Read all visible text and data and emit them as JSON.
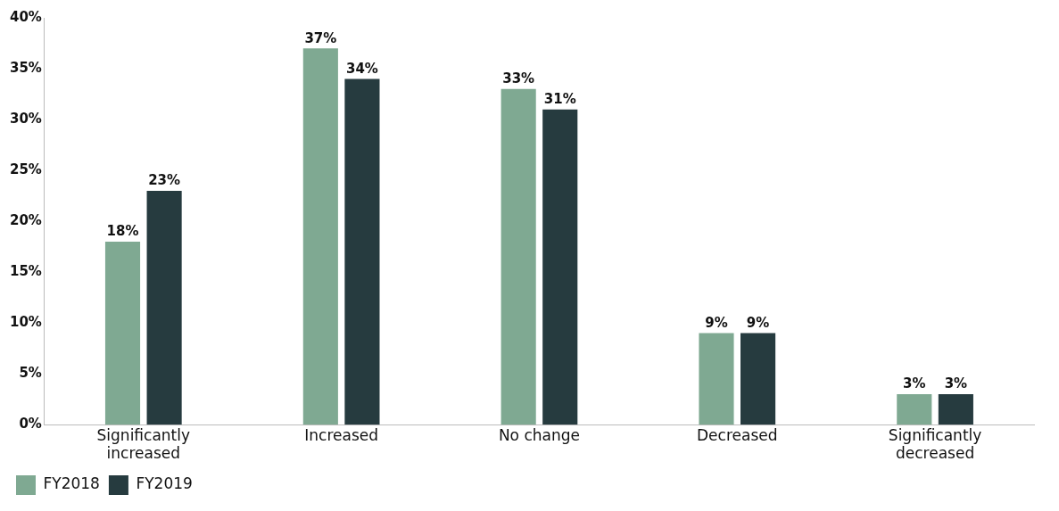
{
  "chart_data": {
    "type": "bar",
    "categories": [
      "Significantly increased",
      "Increased",
      "No change",
      "Decreased",
      "Significantly decreased"
    ],
    "series": [
      {
        "name": "FY2018",
        "color": "#7fa992",
        "values": [
          18,
          37,
          33,
          9,
          3
        ],
        "value_labels": [
          "18%",
          "37%",
          "33%",
          "9%",
          "3%"
        ]
      },
      {
        "name": "FY2019",
        "color": "#263b3f",
        "values": [
          23,
          34,
          31,
          9,
          3
        ],
        "value_labels": [
          "23%",
          "34%",
          "31%",
          "9%",
          "3%"
        ]
      }
    ],
    "ylim": [
      0,
      40
    ],
    "yticks": [
      {
        "value": 0,
        "label": "0%"
      },
      {
        "value": 5,
        "label": "5%"
      },
      {
        "value": 10,
        "label": "10%"
      },
      {
        "value": 15,
        "label": "15%"
      },
      {
        "value": 20,
        "label": "20%"
      },
      {
        "value": 25,
        "label": "25%"
      },
      {
        "value": 30,
        "label": "30%"
      },
      {
        "value": 35,
        "label": "35%"
      },
      {
        "value": 40,
        "label": "40%"
      }
    ],
    "grid": false,
    "legend": "bottom left"
  }
}
